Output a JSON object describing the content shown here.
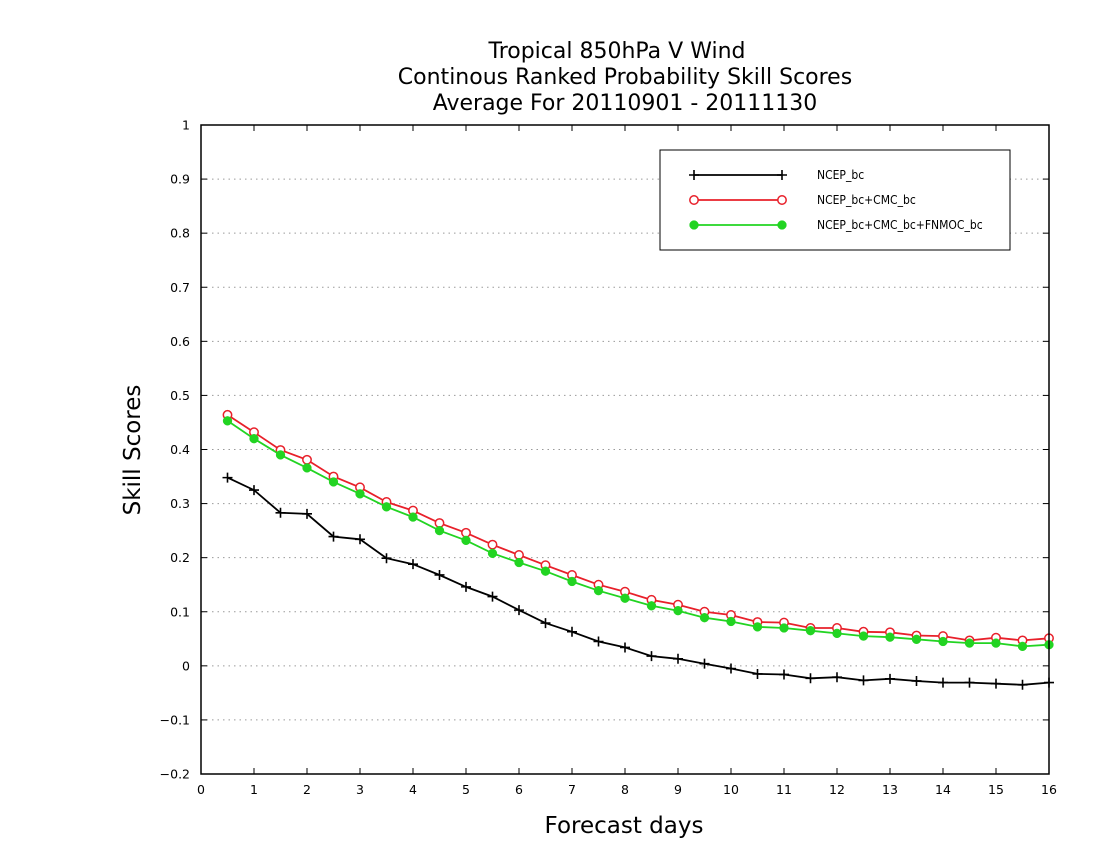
{
  "chart_data": {
    "type": "line",
    "title_lines": [
      "Tropical 850hPa V Wind",
      "Continous Ranked Probability Skill Scores",
      "Average For 20110901 - 20111130"
    ],
    "xlabel": "Forecast days",
    "ylabel": "Skill Scores",
    "xlim": [
      0,
      16
    ],
    "ylim": [
      -0.2,
      1
    ],
    "x_ticks": [
      0,
      1,
      2,
      3,
      4,
      5,
      6,
      7,
      8,
      9,
      10,
      11,
      12,
      13,
      14,
      15,
      16
    ],
    "y_ticks": [
      -0.2,
      -0.1,
      0,
      0.1,
      0.2,
      0.3,
      0.4,
      0.5,
      0.6,
      0.7,
      0.8,
      0.9,
      1
    ],
    "y_tick_labels": [
      "−0.2",
      "−0.1",
      "0",
      "0.1",
      "0.2",
      "0.3",
      "0.4",
      "0.5",
      "0.6",
      "0.7",
      "0.8",
      "0.9",
      "1"
    ],
    "grid": "horizontal-dotted",
    "legend_position": "top-right",
    "x": [
      0.5,
      1,
      1.5,
      2,
      2.5,
      3,
      3.5,
      4,
      4.5,
      5,
      5.5,
      6,
      6.5,
      7,
      7.5,
      8,
      8.5,
      9,
      9.5,
      10,
      10.5,
      11,
      11.5,
      12,
      12.5,
      13,
      13.5,
      14,
      14.5,
      15,
      15.5,
      16
    ],
    "series": [
      {
        "name": "NCEP_bc",
        "color": "#000000",
        "marker": "plus",
        "values": [
          0.348,
          0.325,
          0.283,
          0.281,
          0.239,
          0.234,
          0.199,
          0.188,
          0.168,
          0.146,
          0.128,
          0.103,
          0.079,
          0.063,
          0.045,
          0.034,
          0.018,
          0.013,
          0.004,
          -0.005,
          -0.015,
          -0.016,
          -0.023,
          -0.021,
          -0.027,
          -0.024,
          -0.028,
          -0.031,
          -0.031,
          -0.033,
          -0.035,
          -0.031
        ]
      },
      {
        "name": "NCEP_bc+CMC_bc",
        "color": "#e8202a",
        "marker": "open-circle",
        "values": [
          0.464,
          0.432,
          0.399,
          0.381,
          0.35,
          0.33,
          0.303,
          0.287,
          0.264,
          0.246,
          0.224,
          0.205,
          0.186,
          0.168,
          0.15,
          0.137,
          0.122,
          0.113,
          0.1,
          0.094,
          0.081,
          0.08,
          0.07,
          0.07,
          0.063,
          0.062,
          0.056,
          0.055,
          0.047,
          0.052,
          0.047,
          0.051
        ]
      },
      {
        "name": "NCEP_bc+CMC_bc+FNMOC_bc",
        "color": "#22d422",
        "marker": "filled-circle",
        "values": [
          0.453,
          0.42,
          0.39,
          0.366,
          0.34,
          0.318,
          0.294,
          0.275,
          0.25,
          0.232,
          0.208,
          0.191,
          0.175,
          0.156,
          0.139,
          0.125,
          0.111,
          0.102,
          0.089,
          0.082,
          0.072,
          0.07,
          0.065,
          0.06,
          0.055,
          0.053,
          0.049,
          0.045,
          0.042,
          0.042,
          0.036,
          0.039
        ]
      }
    ]
  }
}
